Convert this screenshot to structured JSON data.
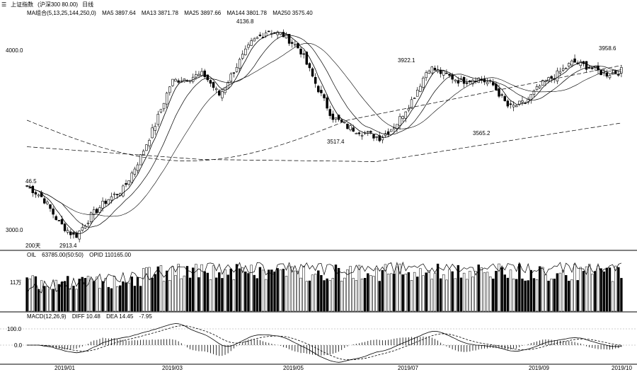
{
  "header": {
    "menu_icon": "hamburger-icon",
    "instrument": "上证指数",
    "contract_info": "(沪深300  80.00)",
    "period": "日线",
    "ma_title": "MA组合(5,13,25,144,250,0)",
    "ma_values": [
      "MA5 3897.64",
      "MA13 3871.78",
      "MA25 3897.66",
      "MA144 3801.78",
      "MA250 3575.40"
    ]
  },
  "volume_header": {
    "title": "OIL",
    "vol": "63785.00(50:50)",
    "oi": "OPID 110165.00"
  },
  "macd_header": {
    "title": "MACD(12,26,9)",
    "diff": "DIFF 10.48",
    "dea": "DEA 14.45",
    "macd": "-7.95"
  },
  "price_axis_labels": [
    "4000.0",
    "3000.0"
  ],
  "volume_axis_label": "11万",
  "macd_axis_labels": [
    "100.0",
    "0.0"
  ],
  "annotations": [
    "4136.8",
    "3922.1",
    "3958.6",
    "3565.2",
    "3517.4",
    "46.5",
    "2913.4",
    "200天"
  ],
  "x_labels": [
    "2019/01",
    "2019/03",
    "2019/05",
    "2019/07",
    "2019/09",
    "2019/10"
  ],
  "colors": {
    "up": "#ffffff",
    "down": "#000000",
    "line": "#000000",
    "dashed": "#000000",
    "grid": "#999999"
  },
  "chart_data": {
    "type": "candlestick",
    "x": [
      "2019/01",
      "2019/03",
      "2019/05",
      "2019/07",
      "2019/09",
      "2019/10"
    ],
    "close_path_approx": [
      3250,
      3180,
      3040,
      2960,
      3080,
      3170,
      3230,
      3400,
      3600,
      3840,
      3860,
      3880,
      3760,
      3920,
      4060,
      4130,
      4100,
      4020,
      3820,
      3640,
      3580,
      3550,
      3520,
      3600,
      3740,
      3920,
      3880,
      3840,
      3860,
      3820,
      3690,
      3720,
      3820,
      3880,
      3950,
      3920,
      3880,
      3900
    ],
    "extremes": {
      "high": 4136.8,
      "low": 2913.4
    },
    "annotated_points": [
      {
        "label": "4136.8",
        "value": 4136.8
      },
      {
        "label": "3922.1",
        "value": 3922.1
      },
      {
        "label": "3958.6",
        "value": 3958.6
      },
      {
        "label": "3565.2",
        "value": 3565.2
      },
      {
        "label": "3517.4",
        "value": 3517.4
      },
      {
        "label": "2913.4",
        "value": 2913.4
      }
    ],
    "ylim": [
      2900,
      4200
    ]
  }
}
